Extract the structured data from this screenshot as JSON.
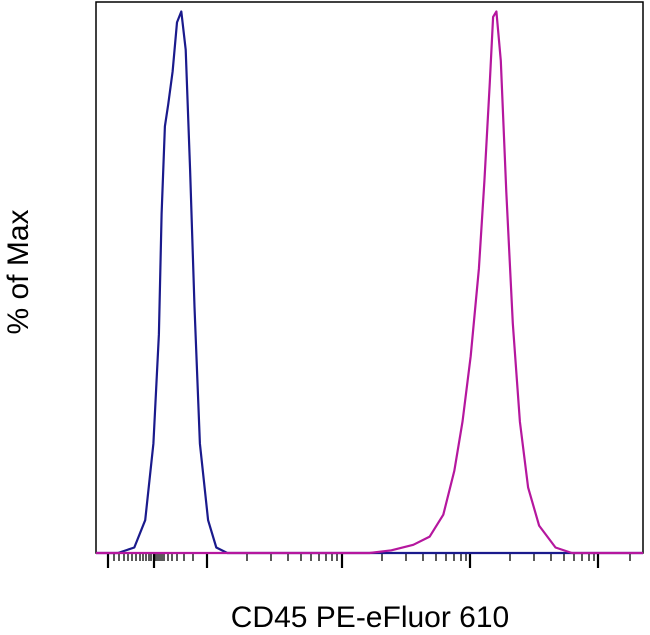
{
  "chart_data": {
    "type": "line",
    "title": "",
    "xlabel": "CD45 PE-eFluor 610",
    "ylabel": "% of Max",
    "xlim": [
      0,
      100
    ],
    "ylim": [
      0,
      100
    ],
    "x_scale": "biexponential",
    "grid": false,
    "legend": "none",
    "series": [
      {
        "color": "#1a1a8c",
        "x": [
          0,
          4,
          7,
          9,
          10.5,
          11.5,
          12,
          12.6,
          13.2,
          14,
          14.8,
          15.6,
          16.4,
          17.2,
          18,
          19,
          20.5,
          22,
          24,
          26,
          100
        ],
        "y": [
          0,
          0,
          1,
          6,
          20,
          40,
          62,
          78,
          82,
          88,
          97,
          99,
          92,
          70,
          45,
          20,
          6,
          1,
          0,
          0,
          0
        ]
      },
      {
        "color": "#b5179e",
        "x": [
          0,
          50,
          54,
          58,
          61,
          63.5,
          65.5,
          67,
          68.5,
          70,
          71,
          72,
          72.6,
          73.2,
          74,
          75,
          76.2,
          77.5,
          79,
          81,
          84,
          87,
          90,
          100
        ],
        "y": [
          0,
          0,
          0.5,
          1.5,
          3,
          7,
          15,
          24,
          36,
          52,
          68,
          86,
          98,
          99,
          90,
          66,
          42,
          24,
          12,
          5,
          1,
          0,
          0,
          0
        ]
      }
    ]
  }
}
